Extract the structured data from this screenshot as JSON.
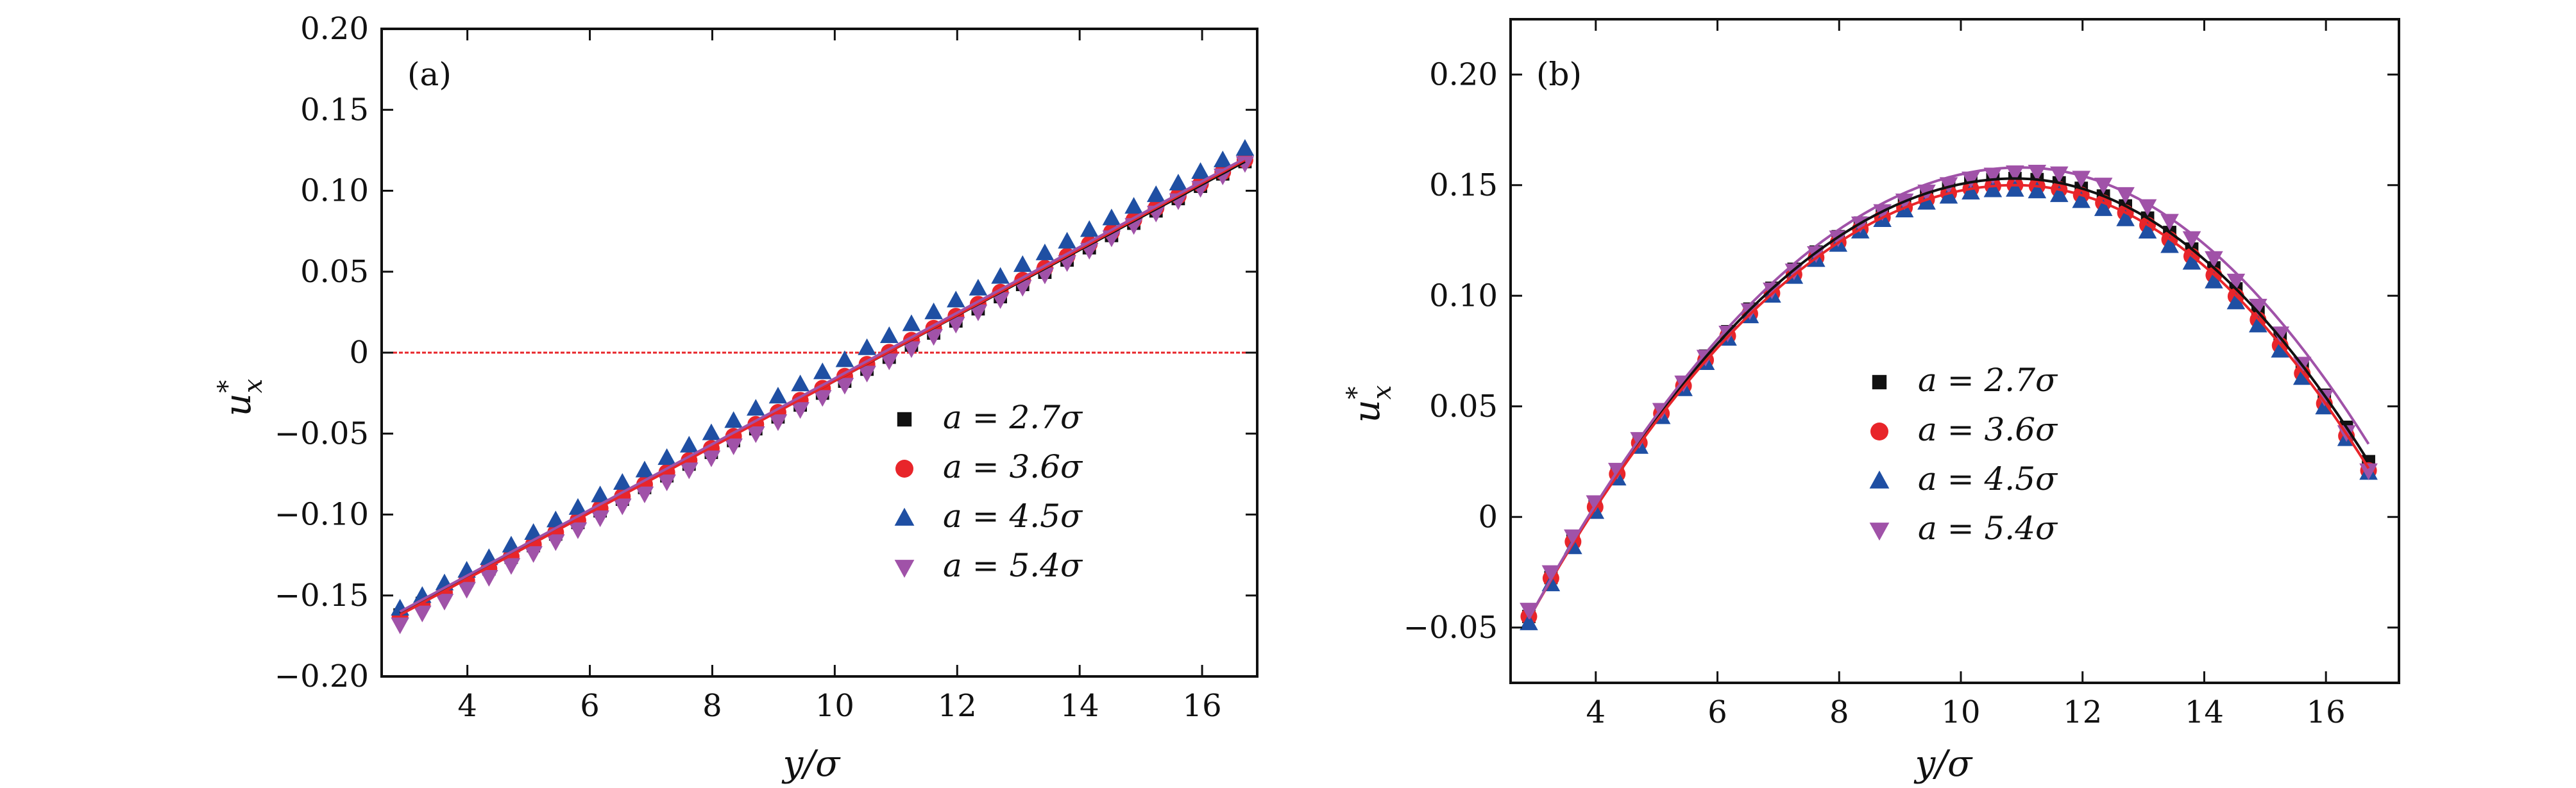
{
  "chart_data": [
    {
      "panel": "(a)",
      "type": "scatter",
      "xlabel": "y/σ",
      "ylabel": "u*x",
      "xlim": [
        2.6,
        16.9
      ],
      "ylim": [
        -0.2,
        0.2
      ],
      "xticks": [
        4,
        6,
        8,
        10,
        12,
        14,
        16
      ],
      "xtick_labels": [
        "4",
        "6",
        "8",
        "10",
        "12",
        "14",
        "16"
      ],
      "yticks": [
        -0.2,
        -0.15,
        -0.1,
        -0.05,
        0,
        0.05,
        0.1,
        0.15,
        0.2
      ],
      "ytick_labels": [
        "−0.20",
        "−0.15",
        "−0.10",
        "−0.05",
        "0",
        "0.05",
        "0.10",
        "0.15",
        "0.20"
      ],
      "reference_line": {
        "y": 0,
        "color": "#e8252a",
        "style": "dashed"
      },
      "legend_position": "center-right",
      "series": [
        {
          "name": "a = 2.7σ",
          "marker": "square",
          "color": "#111111",
          "x_start": 2.9,
          "x_end": 16.7,
          "points": 39,
          "y_start": -0.162,
          "y_end": 0.118,
          "offset": -0.003
        },
        {
          "name": "a = 3.6σ",
          "marker": "circle",
          "color": "#e8252a",
          "x_start": 2.9,
          "x_end": 16.7,
          "points": 39,
          "y_start": -0.163,
          "y_end": 0.119,
          "offset": 0.0
        },
        {
          "name": "a = 4.5σ",
          "marker": "triangle-up",
          "color": "#1f4fa3",
          "x_start": 2.9,
          "x_end": 16.7,
          "points": 39,
          "y_start": -0.158,
          "y_end": 0.126,
          "offset": 0.004
        },
        {
          "name": "a = 5.4σ",
          "marker": "triangle-down",
          "color": "#a052a8",
          "x_start": 2.9,
          "x_end": 16.7,
          "points": 39,
          "y_start": -0.168,
          "y_end": 0.117,
          "offset": -0.002
        }
      ],
      "fit_lines": [
        {
          "color": "#111111",
          "x": [
            2.9,
            16.7
          ],
          "y": [
            -0.161,
            0.118
          ]
        },
        {
          "color": "#e8252a",
          "x": [
            2.9,
            16.7
          ],
          "y": [
            -0.162,
            0.119
          ]
        },
        {
          "color": "#a052a8",
          "x": [
            2.9,
            16.7
          ],
          "y": [
            -0.16,
            0.12
          ]
        }
      ]
    },
    {
      "panel": "(b)",
      "type": "scatter",
      "xlabel": "y/σ",
      "ylabel": "u*x",
      "xlim": [
        2.6,
        17.2
      ],
      "ylim": [
        -0.075,
        0.225
      ],
      "xticks": [
        4,
        6,
        8,
        10,
        12,
        14,
        16
      ],
      "xtick_labels": [
        "4",
        "6",
        "8",
        "10",
        "12",
        "14",
        "16"
      ],
      "yticks": [
        -0.05,
        0,
        0.05,
        0.1,
        0.15,
        0.2
      ],
      "ytick_labels": [
        "−0.05",
        "0",
        "0.05",
        "0.10",
        "0.15",
        "0.20"
      ],
      "legend_position": "center",
      "series": [
        {
          "name": "a = 2.7σ",
          "marker": "square",
          "color": "#111111",
          "x_start": 2.9,
          "x_end": 16.7,
          "points": 39,
          "vertex_x": 10.9,
          "peak": 0.153,
          "y_start": -0.045,
          "y_end": 0.025
        },
        {
          "name": "a = 3.6σ",
          "marker": "circle",
          "color": "#e8252a",
          "x_start": 2.9,
          "x_end": 16.7,
          "points": 39,
          "vertex_x": 10.9,
          "peak": 0.15,
          "y_start": -0.045,
          "y_end": 0.021
        },
        {
          "name": "a = 4.5σ",
          "marker": "triangle-up",
          "color": "#1f4fa3",
          "x_start": 2.9,
          "x_end": 16.7,
          "points": 39,
          "vertex_x": 10.8,
          "peak": 0.148,
          "y_start": -0.048,
          "y_end": 0.02
        },
        {
          "name": "a = 5.4σ",
          "marker": "triangle-down",
          "color": "#a052a8",
          "x_start": 2.9,
          "x_end": 16.7,
          "points": 39,
          "vertex_x": 11.2,
          "peak": 0.156,
          "y_start": -0.042,
          "y_end": 0.021
        }
      ],
      "fit_lines": [
        {
          "color": "#111111",
          "vertex_x": 10.9,
          "peak": 0.153,
          "y_start": -0.046,
          "y_end": 0.025
        },
        {
          "color": "#e8252a",
          "vertex_x": 10.9,
          "peak": 0.15,
          "y_start": -0.046,
          "y_end": 0.022
        },
        {
          "color": "#a052a8",
          "vertex_x": 11.0,
          "peak": 0.158,
          "y_start": -0.046,
          "y_end": 0.033
        }
      ]
    }
  ]
}
